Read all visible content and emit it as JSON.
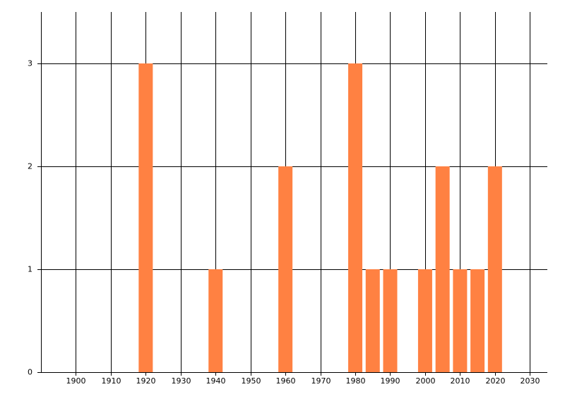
{
  "chart_data": {
    "type": "bar",
    "x": [
      1920,
      1940,
      1960,
      1980,
      1985,
      1990,
      2000,
      2005,
      2010,
      2015,
      2020
    ],
    "values": [
      3,
      1,
      2,
      3,
      1,
      1,
      1,
      2,
      1,
      1,
      2
    ],
    "color": "#ff8142",
    "xlim": [
      1890,
      2035
    ],
    "xticks": [
      1900,
      1910,
      1920,
      1930,
      1940,
      1950,
      1960,
      1970,
      1980,
      1990,
      2000,
      2010,
      2020,
      2030
    ],
    "ylim": [
      0,
      3.5
    ],
    "yticks": [
      0,
      1,
      2,
      3
    ],
    "grid": true
  }
}
